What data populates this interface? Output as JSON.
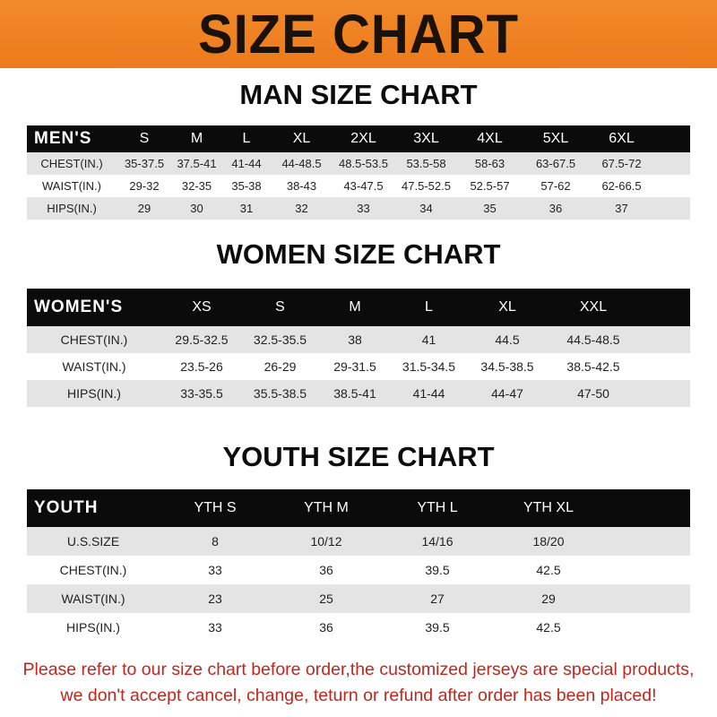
{
  "banner_title": "SIZE CHART",
  "men": {
    "title": "MAN SIZE CHART",
    "header": [
      "MEN'S",
      "S",
      "M",
      "L",
      "XL",
      "2XL",
      "3XL",
      "4XL",
      "5XL",
      "6XL"
    ],
    "rows": [
      [
        "CHEST(IN.)",
        "35-37.5",
        "37.5-41",
        "41-44",
        "44-48.5",
        "48.5-53.5",
        "53.5-58",
        "58-63",
        "63-67.5",
        "67.5-72"
      ],
      [
        "WAIST(IN.)",
        "29-32",
        "32-35",
        "35-38",
        "38-43",
        "43-47.5",
        "47.5-52.5",
        "52.5-57",
        "57-62",
        "62-66.5"
      ],
      [
        "HIPS(IN.)",
        "29",
        "30",
        "31",
        "32",
        "33",
        "34",
        "35",
        "36",
        "37"
      ]
    ]
  },
  "women": {
    "title": "WOMEN SIZE CHART",
    "header": [
      "WOMEN'S",
      "XS",
      "S",
      "M",
      "L",
      "XL",
      "XXL"
    ],
    "rows": [
      [
        "CHEST(IN.)",
        "29.5-32.5",
        "32.5-35.5",
        "38",
        "41",
        "44.5",
        "44.5-48.5"
      ],
      [
        "WAIST(IN.)",
        "23.5-26",
        "26-29",
        "29-31.5",
        "31.5-34.5",
        "34.5-38.5",
        "38.5-42.5"
      ],
      [
        "HIPS(IN.)",
        "33-35.5",
        "35.5-38.5",
        "38.5-41",
        "41-44",
        "44-47",
        "47-50"
      ]
    ]
  },
  "youth": {
    "title": "YOUTH SIZE CHART",
    "header": [
      "YOUTH",
      "YTH S",
      "YTH M",
      "YTH L",
      "YTH XL"
    ],
    "rows": [
      [
        "U.S.SIZE",
        "8",
        "10/12",
        "14/16",
        "18/20"
      ],
      [
        "CHEST(IN.)",
        "33",
        "36",
        "39.5",
        "42.5"
      ],
      [
        "WAIST(IN.)",
        "23",
        "25",
        "27",
        "29"
      ],
      [
        "HIPS(IN.)",
        "33",
        "36",
        "39.5",
        "42.5"
      ]
    ]
  },
  "note": {
    "line1": "Please refer to our size chart before order,the customized jerseys are special products,",
    "line2": "we don't accept cancel, change, teturn or refund after order has been placed!"
  },
  "colors": {
    "banner": "#ee7a1e",
    "header_row": "#0b0b0b",
    "shaded_row": "#e4e4e4",
    "note": "#c0271f"
  }
}
